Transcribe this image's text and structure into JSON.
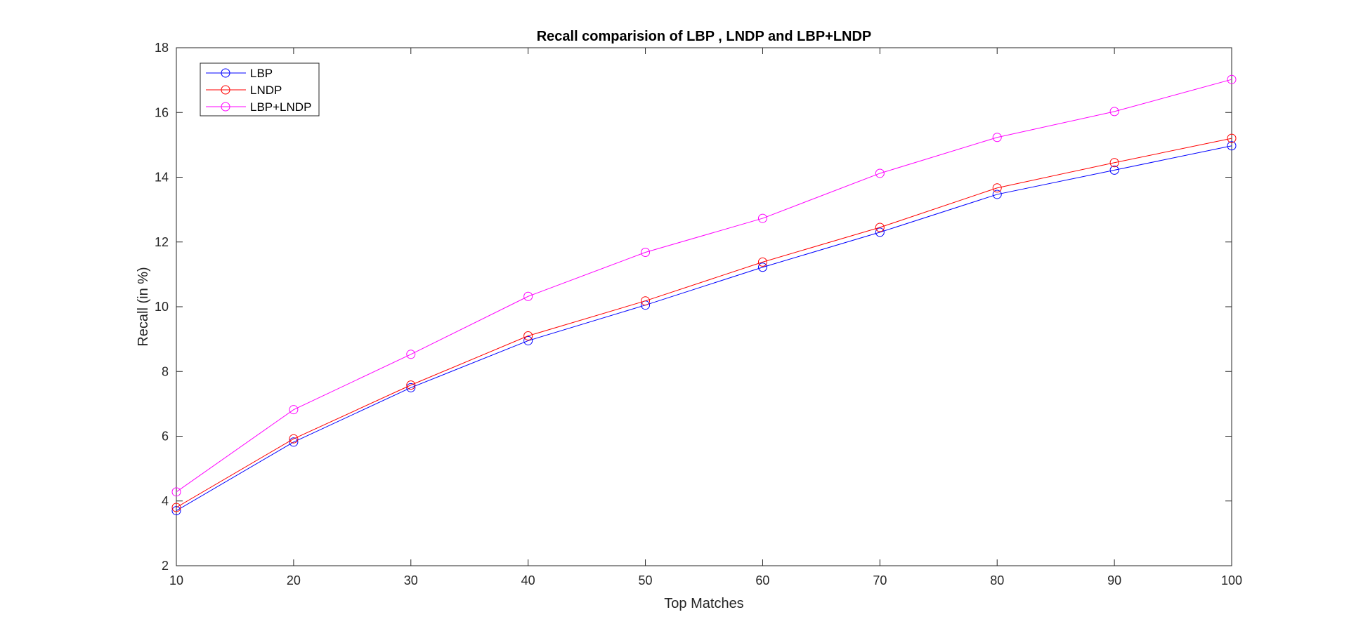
{
  "chart_data": {
    "type": "line",
    "title": "Recall comparision of LBP , LNDP and LBP+LNDP",
    "xlabel": "Top Matches",
    "ylabel": "Recall (in %)",
    "x": [
      10,
      20,
      30,
      40,
      50,
      60,
      70,
      80,
      90,
      100
    ],
    "xlim": [
      10,
      100
    ],
    "ylim": [
      2,
      18
    ],
    "xticks": [
      10,
      20,
      30,
      40,
      50,
      60,
      70,
      80,
      90,
      100
    ],
    "yticks": [
      2,
      4,
      6,
      8,
      10,
      12,
      14,
      16,
      18
    ],
    "grid": false,
    "legend_position": "top-left",
    "marker": "circle-open",
    "series": [
      {
        "name": "LBP",
        "color": "#0000ff",
        "values": [
          3.7,
          5.82,
          7.5,
          8.95,
          10.05,
          11.22,
          12.3,
          13.47,
          14.22,
          14.97
        ]
      },
      {
        "name": "LNDP",
        "color": "#ff0000",
        "values": [
          3.8,
          5.92,
          7.58,
          9.1,
          10.18,
          11.38,
          12.45,
          13.67,
          14.45,
          15.2
        ]
      },
      {
        "name": "LBP+LNDP",
        "color": "#ff00ff",
        "values": [
          4.28,
          6.82,
          8.53,
          10.32,
          11.68,
          12.73,
          14.12,
          15.23,
          16.03,
          17.02
        ]
      }
    ]
  }
}
